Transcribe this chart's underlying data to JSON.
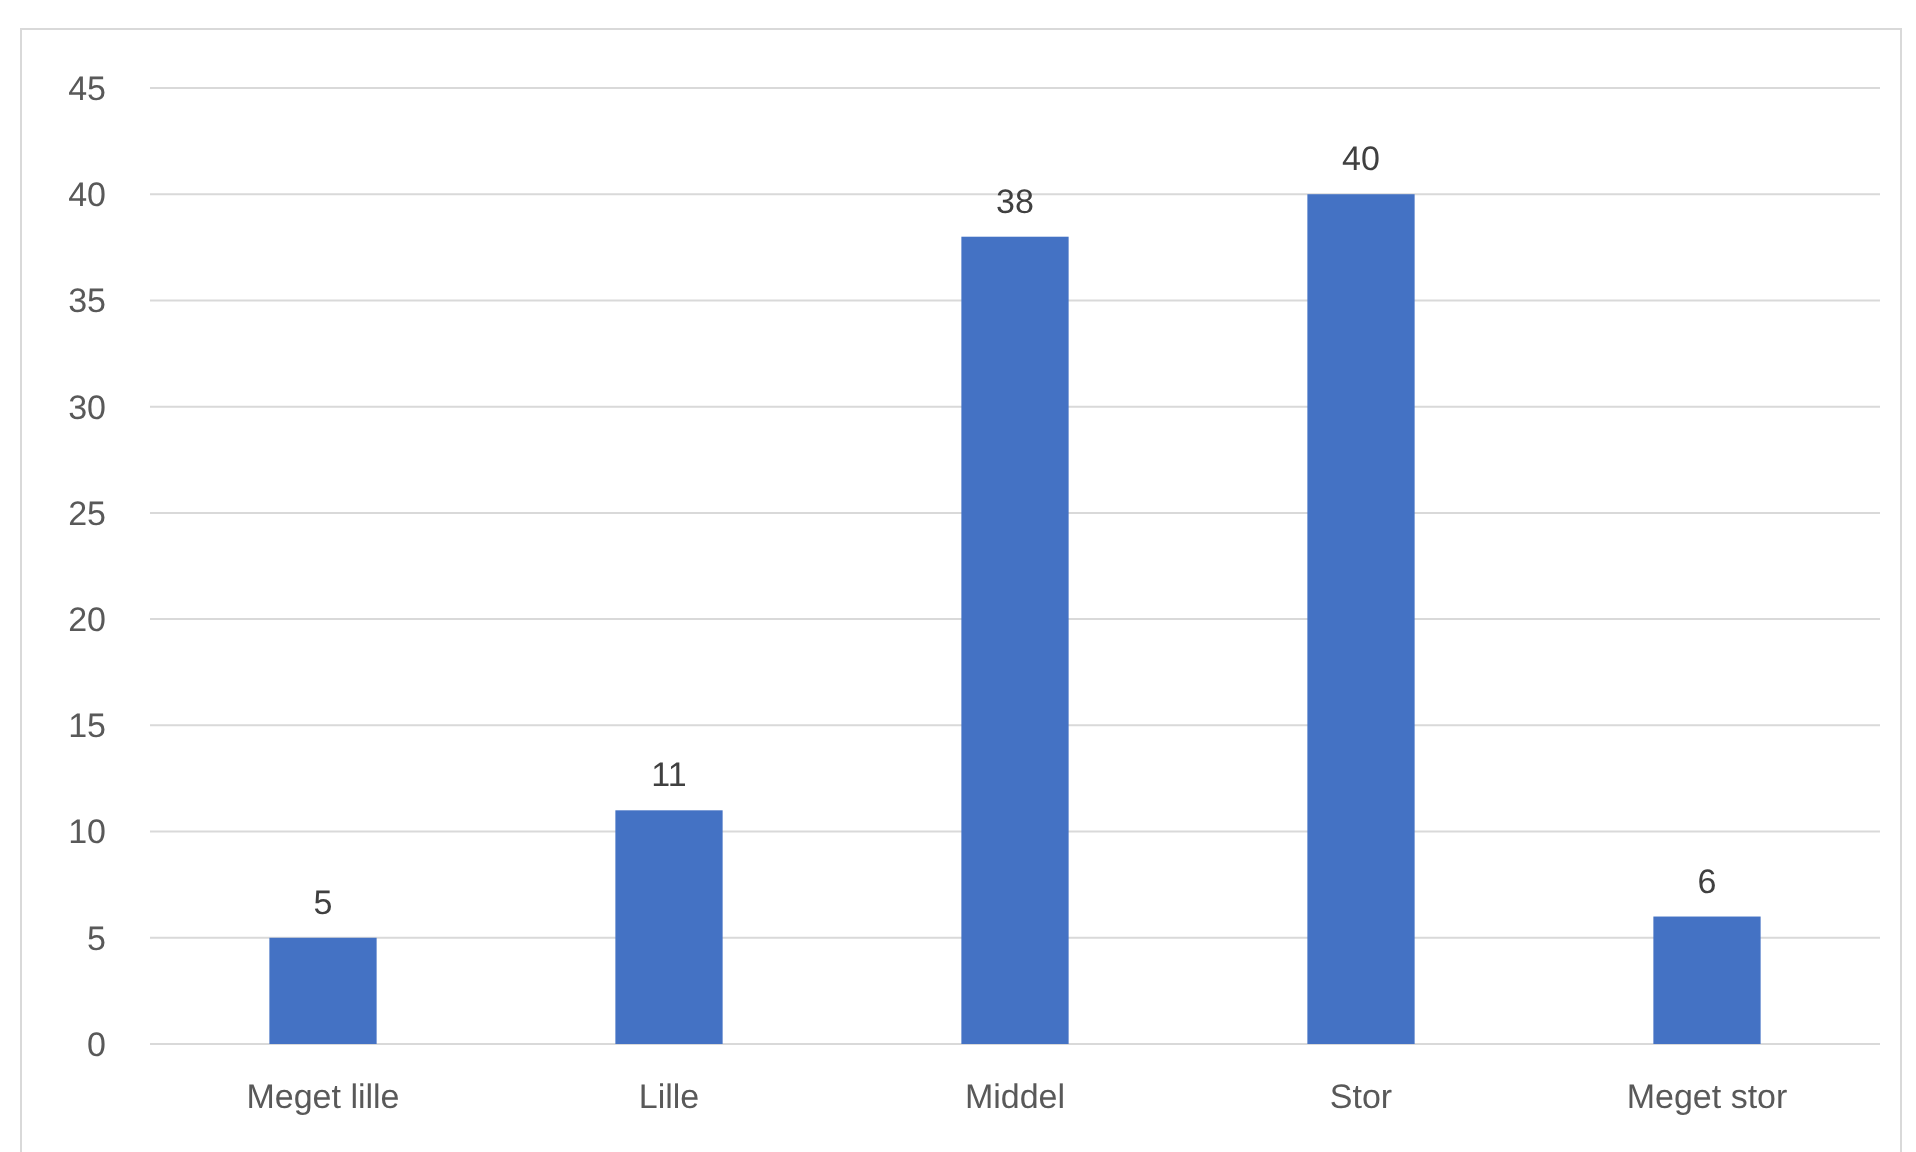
{
  "chart_data": {
    "type": "bar",
    "categories": [
      "Meget lille",
      "Lille",
      "Middel",
      "Stor",
      "Meget stor"
    ],
    "values": [
      5,
      11,
      38,
      40,
      6
    ],
    "color": "#4472c4",
    "ylim": [
      0,
      45
    ],
    "yticks": [
      0,
      5,
      10,
      15,
      20,
      25,
      30,
      35,
      40,
      45
    ],
    "grid": "y",
    "data_labels": true
  }
}
